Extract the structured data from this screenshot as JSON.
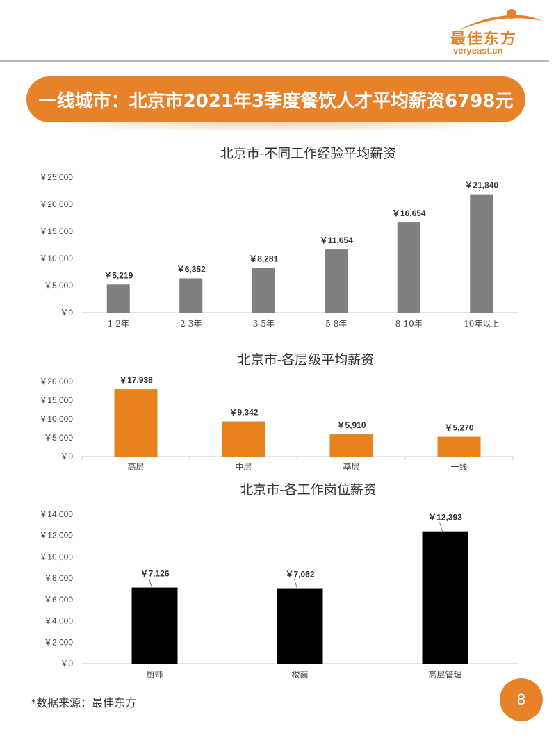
{
  "logo": {
    "name_cn": "最佳东方",
    "domain": "veryeast.cn"
  },
  "banner": {
    "title": "一线城市：北京市2021年3季度餐饮人才平均薪资6798元"
  },
  "chart_data": [
    {
      "type": "bar",
      "title": "北京市-不同工作经验平均薪资",
      "categories": [
        "1-2年",
        "2-3年",
        "3-5年",
        "5-8年",
        "8-10年",
        "10年以上"
      ],
      "values": [
        5219,
        6352,
        8281,
        11654,
        16654,
        21840
      ],
      "data_labels": [
        "￥5,219",
        "￥6,352",
        "￥8,281",
        "￥11,654",
        "￥16,654",
        "￥21,840"
      ],
      "yticks": [
        "￥0",
        "￥5,000",
        "￥10,000",
        "￥15,000",
        "￥20,000",
        "￥25,000"
      ],
      "ylim": [
        0,
        25000
      ],
      "color": "#7f7f7f",
      "xlabel": "",
      "ylabel": "",
      "grid": false
    },
    {
      "type": "bar",
      "title": "北京市-各层级平均薪资",
      "categories": [
        "高层",
        "中层",
        "基层",
        "一线"
      ],
      "values": [
        17938,
        9342,
        5910,
        5270
      ],
      "data_labels": [
        "￥17,938",
        "￥9,342",
        "￥5,910",
        "￥5,270"
      ],
      "yticks": [
        "￥0",
        "￥5,000",
        "￥10,000",
        "￥15,000",
        "￥20,000"
      ],
      "ylim": [
        0,
        20000
      ],
      "color": "#e8821e",
      "xlabel": "",
      "ylabel": "",
      "grid": false
    },
    {
      "type": "bar",
      "title": "北京市-各工作岗位薪资",
      "categories": [
        "厨师",
        "楼面",
        "高层管理"
      ],
      "values": [
        7126,
        7062,
        12393
      ],
      "data_labels": [
        "￥7,126",
        "￥7,062",
        "￥12,393"
      ],
      "yticks": [
        "￥0",
        "￥2,000",
        "￥4,000",
        "￥6,000",
        "￥8,000",
        "￥10,000",
        "￥12,000",
        "￥14,000"
      ],
      "ylim": [
        0,
        14000
      ],
      "color": "#000000",
      "xlabel": "",
      "ylabel": "",
      "grid": false
    }
  ],
  "footer": {
    "source": "*数据来源：最佳东方",
    "page": "8"
  }
}
